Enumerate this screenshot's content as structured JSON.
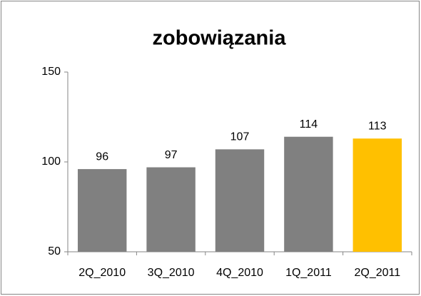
{
  "chart_data": {
    "type": "bar",
    "title": "zobowiązania",
    "categories": [
      "2Q_2010",
      "3Q_2010",
      "4Q_2010",
      "1Q_2011",
      "2Q_2011"
    ],
    "values": [
      96,
      97,
      107,
      114,
      113
    ],
    "colors": [
      "#808080",
      "#808080",
      "#808080",
      "#808080",
      "#ffc000"
    ],
    "ylim": [
      50,
      150
    ],
    "yticks": [
      50,
      100,
      150
    ],
    "grid": false
  }
}
